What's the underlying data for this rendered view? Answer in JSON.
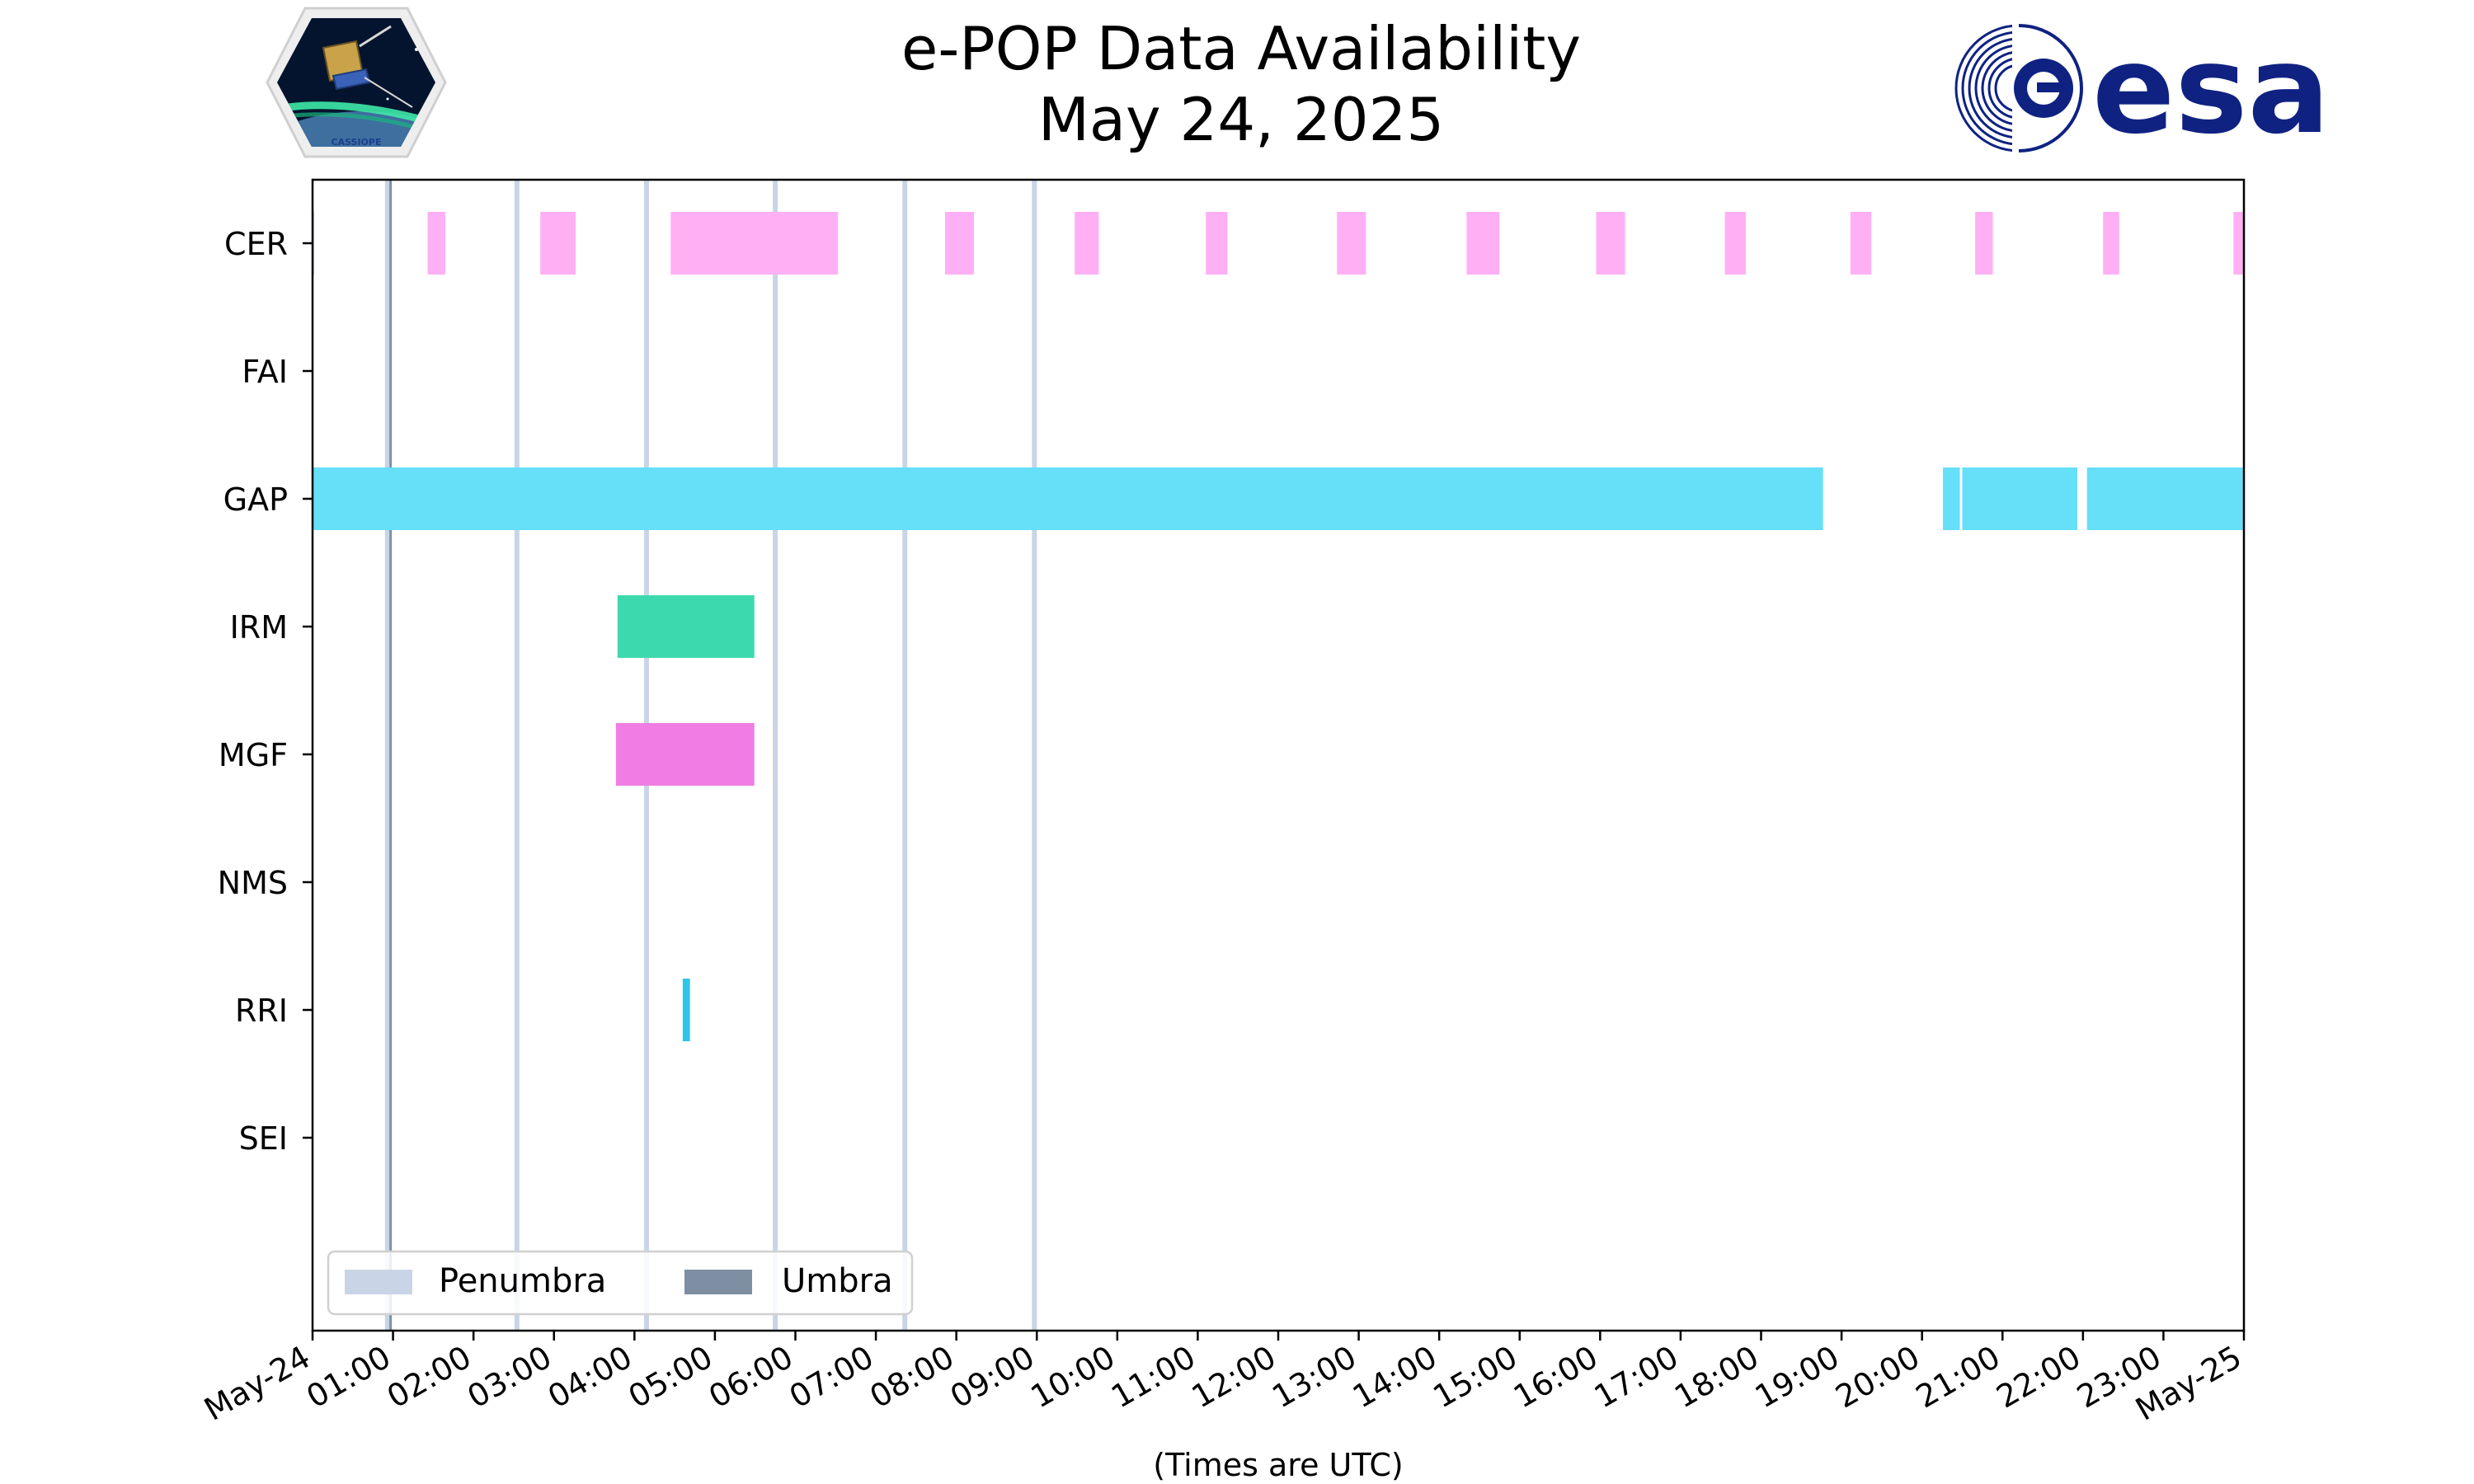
{
  "chart_data": {
    "type": "timeline",
    "title_lines": [
      "e-POP Data Availability",
      "May 24, 2025"
    ],
    "xlabel": "(Times are UTC)",
    "x_unit": "hours UTC since May 24 00:00",
    "xlim": [
      0,
      24
    ],
    "x_ticks": [
      {
        "value": 0,
        "label": "May-24"
      },
      {
        "value": 1,
        "label": "01:00"
      },
      {
        "value": 2,
        "label": "02:00"
      },
      {
        "value": 3,
        "label": "03:00"
      },
      {
        "value": 4,
        "label": "04:00"
      },
      {
        "value": 5,
        "label": "05:00"
      },
      {
        "value": 6,
        "label": "06:00"
      },
      {
        "value": 7,
        "label": "07:00"
      },
      {
        "value": 8,
        "label": "08:00"
      },
      {
        "value": 9,
        "label": "09:00"
      },
      {
        "value": 10,
        "label": "10:00"
      },
      {
        "value": 11,
        "label": "11:00"
      },
      {
        "value": 12,
        "label": "12:00"
      },
      {
        "value": 13,
        "label": "13:00"
      },
      {
        "value": 14,
        "label": "14:00"
      },
      {
        "value": 15,
        "label": "15:00"
      },
      {
        "value": 16,
        "label": "16:00"
      },
      {
        "value": 17,
        "label": "17:00"
      },
      {
        "value": 18,
        "label": "18:00"
      },
      {
        "value": 19,
        "label": "19:00"
      },
      {
        "value": 20,
        "label": "20:00"
      },
      {
        "value": 21,
        "label": "21:00"
      },
      {
        "value": 22,
        "label": "22:00"
      },
      {
        "value": 23,
        "label": "23:00"
      },
      {
        "value": 24,
        "label": "May-25"
      }
    ],
    "instruments": [
      "CER",
      "FAI",
      "GAP",
      "IRM",
      "MGF",
      "NMS",
      "RRI",
      "SEI"
    ],
    "series": [
      {
        "name": "CER",
        "color": "#ffb0f5",
        "intervals": [
          [
            0.0,
            0.02
          ],
          [
            1.43,
            1.65
          ],
          [
            2.83,
            3.27
          ],
          [
            4.45,
            6.53
          ],
          [
            7.86,
            8.22
          ],
          [
            9.47,
            9.77
          ],
          [
            11.1,
            11.37
          ],
          [
            12.73,
            13.09
          ],
          [
            14.34,
            14.75
          ],
          [
            15.95,
            16.31
          ],
          [
            17.55,
            17.81
          ],
          [
            19.11,
            19.37
          ],
          [
            20.66,
            20.88
          ],
          [
            22.25,
            22.45
          ],
          [
            23.87,
            24.0
          ]
        ]
      },
      {
        "name": "FAI",
        "color": "#ffb0f5",
        "intervals": []
      },
      {
        "name": "GAP",
        "color": "#66dff9",
        "intervals": [
          [
            0.0,
            18.77
          ],
          [
            20.26,
            20.47
          ],
          [
            20.5,
            21.93
          ],
          [
            22.05,
            24.0
          ]
        ]
      },
      {
        "name": "IRM",
        "color": "#3dd9ae",
        "intervals": [
          [
            3.79,
            5.49
          ]
        ]
      },
      {
        "name": "MGF",
        "color": "#f07de4",
        "intervals": [
          [
            3.77,
            5.49
          ]
        ]
      },
      {
        "name": "NMS",
        "color": "#ffb0f5",
        "intervals": []
      },
      {
        "name": "RRI",
        "color": "#2cc6e6",
        "intervals": [
          [
            4.6,
            4.69
          ]
        ]
      },
      {
        "name": "SEI",
        "color": "#ffb0f5",
        "intervals": []
      }
    ],
    "penumbra": {
      "label": "Penumbra",
      "color": "#c9d5e6",
      "times": [
        0.93,
        2.54,
        4.15,
        5.75,
        7.36,
        8.97
      ]
    },
    "umbra": {
      "label": "Umbra",
      "color": "#7f8fa3",
      "times": [
        0.97
      ]
    },
    "legend_location": "lower-left",
    "grid": false
  },
  "logos": {
    "left": {
      "name": "cassiope-mission-logo",
      "text": "CASSIOPE"
    },
    "right": {
      "name": "esa-logo",
      "text": "esa",
      "color": "#0f2282"
    }
  }
}
